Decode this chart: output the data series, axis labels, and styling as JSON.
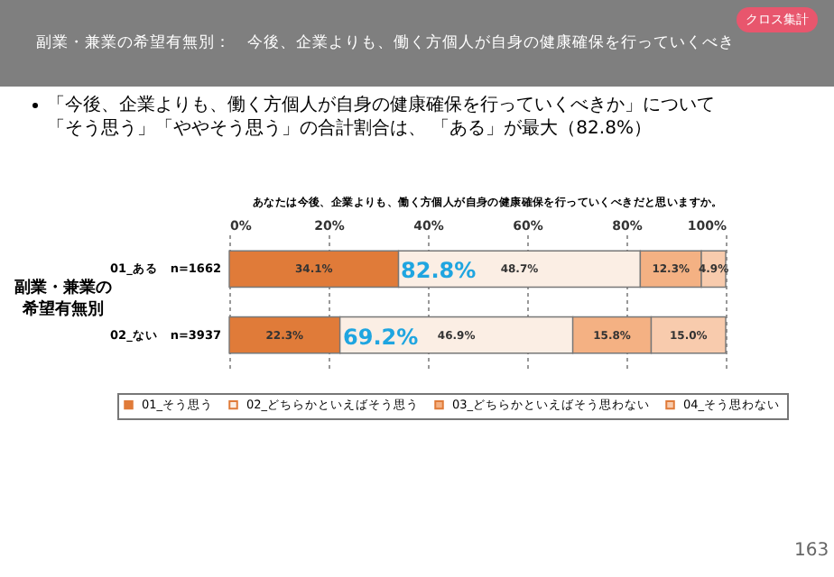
{
  "chart_data": {
    "type": "bar",
    "orientation": "horizontal",
    "stacked": true,
    "title": "副業・兼業の希望有無別：　今後、企業よりも、働く方個人が自身の健康確保を行っていくべき",
    "subtitle": "「今後、企業よりも、働く方個人が自身の健康確保を行っていくべきか」について「そう思う」「ややそう思う」の合計割合は、 「ある」が最大（82.8%）",
    "ylabel": "副業・兼業の希望有無別",
    "categories": [
      "01_ある　n=1662",
      "02_ない　n=3937"
    ],
    "series": [
      {
        "name": "01_そう思う",
        "color": "#e07b39",
        "values": [
          34.1,
          22.3
        ],
        "value_labels": [
          "34.1%",
          "22.3%"
        ]
      },
      {
        "name": "02_どちらかといえばそう思う",
        "color": "#fbeee4",
        "values": [
          48.7,
          46.9
        ],
        "value_labels": [
          "48.7%",
          "46.9%"
        ]
      },
      {
        "name": "03_どちらかといえばそう思わない",
        "color": "#f4b183",
        "values": [
          12.3,
          15.8
        ],
        "value_labels": [
          "12.3%",
          "15.8%"
        ]
      },
      {
        "name": "04_そう思わない",
        "color": "#f8cbad",
        "values": [
          4.9,
          15.0
        ],
        "value_labels": [
          "4.9%",
          "15.0%"
        ]
      }
    ],
    "xlim": [
      0,
      100
    ],
    "xticks": [
      {
        "value": 0,
        "label": "0%"
      },
      {
        "value": 20,
        "label": "20%"
      },
      {
        "value": 40,
        "label": "40%"
      },
      {
        "value": 60,
        "label": "60%"
      },
      {
        "value": 80,
        "label": "80%"
      },
      {
        "value": 100,
        "label": "100%"
      }
    ],
    "grid": "x",
    "legend": "bottom",
    "annotations": [
      "あなたは今後、企業よりも、働く方個人が自身の健康確保を行っていくべきだと思いますか。",
      "クロス集計",
      "163",
      "82.8%",
      "69.2%"
    ]
  }
}
